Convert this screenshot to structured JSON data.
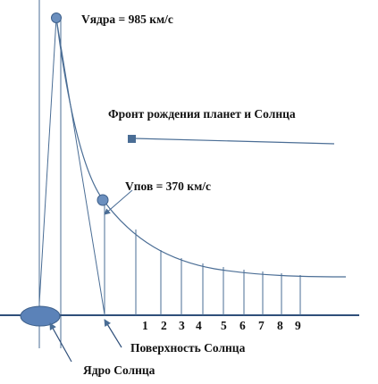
{
  "labels": {
    "v_core": "Vядра = 985 км/с",
    "v_surface": "Vпов = 370 км/с",
    "front": "Фронт рождения планет и Солнца",
    "sun_surface": "Поверхность Солнца",
    "sun_core": "Ядро Солнца"
  },
  "planet_numbers": [
    "1",
    "2",
    "3",
    "4",
    "5",
    "6",
    "7",
    "8",
    "9"
  ],
  "colors": {
    "line": "#4a6d95",
    "marker_fill": "#6b8fbe",
    "marker_stroke": "#3d5f8a",
    "core_fill": "#5b82b8",
    "text": "#111111"
  }
}
